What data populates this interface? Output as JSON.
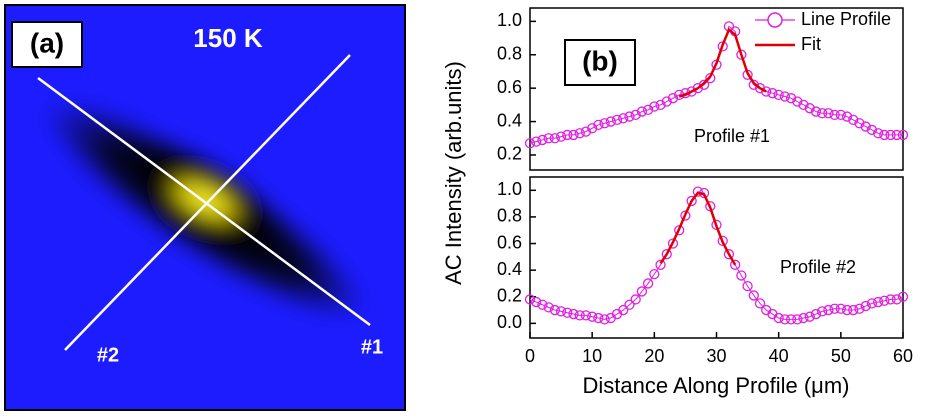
{
  "image_panel": {
    "label": "(a)",
    "title": "150 K",
    "line_labels": [
      "#1",
      "#2"
    ]
  },
  "chart_data": [
    {
      "type": "line",
      "panel_label": "(b)",
      "annotation": "Profile #1",
      "ylabel": "AC Intensity (arb.units)",
      "legend": "upper right",
      "xlim": [
        0,
        60
      ],
      "ylim": [
        0.11,
        1.08
      ],
      "yticks": [
        0.2,
        0.4,
        0.6,
        0.8,
        {
          "value": 1,
          "label": "1.0"
        }
      ],
      "x": [
        0,
        1,
        2,
        3,
        4,
        5,
        6,
        7,
        8,
        9,
        10,
        11,
        12,
        13,
        14,
        15,
        16,
        17,
        18,
        19,
        20,
        21,
        22,
        23,
        24,
        25,
        26,
        27,
        28,
        29,
        30,
        31,
        32,
        33,
        34,
        35,
        36,
        37,
        38,
        39,
        40,
        41,
        42,
        43,
        44,
        45,
        46,
        47,
        48,
        49,
        50,
        51,
        52,
        53,
        54,
        55,
        56,
        57,
        58,
        59,
        60
      ],
      "series": [
        {
          "name": "Line Profile",
          "color": "#e020e0",
          "marker": "circle",
          "values": [
            0.27,
            0.28,
            0.29,
            0.3,
            0.3,
            0.31,
            0.32,
            0.32,
            0.33,
            0.34,
            0.36,
            0.38,
            0.39,
            0.4,
            0.41,
            0.42,
            0.43,
            0.44,
            0.46,
            0.47,
            0.49,
            0.5,
            0.52,
            0.54,
            0.56,
            0.57,
            0.58,
            0.6,
            0.62,
            0.66,
            0.74,
            0.85,
            0.97,
            0.94,
            0.8,
            0.68,
            0.62,
            0.6,
            0.58,
            0.57,
            0.56,
            0.55,
            0.54,
            0.52,
            0.5,
            0.48,
            0.46,
            0.45,
            0.45,
            0.44,
            0.44,
            0.43,
            0.41,
            0.39,
            0.37,
            0.35,
            0.33,
            0.32,
            0.32,
            0.32,
            0.32
          ]
        },
        {
          "name": "Fit",
          "color": "#e00000",
          "values": [
            null,
            null,
            null,
            null,
            null,
            null,
            null,
            null,
            null,
            null,
            null,
            null,
            null,
            null,
            null,
            null,
            null,
            null,
            null,
            null,
            null,
            null,
            null,
            null,
            0.55,
            0.56,
            0.58,
            0.6,
            0.63,
            0.67,
            0.75,
            0.86,
            0.95,
            0.92,
            0.8,
            0.69,
            0.63,
            0.6,
            0.58,
            null,
            null,
            null,
            null,
            null,
            null,
            null,
            null,
            null,
            null,
            null,
            null,
            null,
            null,
            null,
            null,
            null,
            null,
            null,
            null,
            null,
            null
          ]
        }
      ]
    },
    {
      "type": "line",
      "annotation": "Profile #2",
      "xlabel": "Distance Along Profile (μm)",
      "xlim": [
        0,
        60
      ],
      "xticks": [
        0,
        10,
        20,
        30,
        40,
        50,
        60
      ],
      "ylim": [
        -0.11,
        1.1
      ],
      "yticks": [
        {
          "value": 0,
          "label": "0.0"
        },
        0.2,
        0.4,
        0.6,
        0.8,
        {
          "value": 1,
          "label": "1.0"
        }
      ],
      "x": [
        0,
        1,
        2,
        3,
        4,
        5,
        6,
        7,
        8,
        9,
        10,
        11,
        12,
        13,
        14,
        15,
        16,
        17,
        18,
        19,
        20,
        21,
        22,
        23,
        24,
        25,
        26,
        27,
        28,
        29,
        30,
        31,
        32,
        33,
        34,
        35,
        36,
        37,
        38,
        39,
        40,
        41,
        42,
        43,
        44,
        45,
        46,
        47,
        48,
        49,
        50,
        51,
        52,
        53,
        54,
        55,
        56,
        57,
        58,
        59,
        60
      ],
      "series": [
        {
          "color": "#e020e0",
          "marker": "circle",
          "values": [
            0.18,
            0.16,
            0.14,
            0.12,
            0.1,
            0.09,
            0.08,
            0.07,
            0.06,
            0.06,
            0.05,
            0.04,
            0.03,
            0.04,
            0.07,
            0.1,
            0.14,
            0.18,
            0.24,
            0.3,
            0.37,
            0.44,
            0.52,
            0.6,
            0.7,
            0.81,
            0.92,
            0.99,
            0.98,
            0.88,
            0.74,
            0.62,
            0.52,
            0.44,
            0.36,
            0.28,
            0.21,
            0.15,
            0.1,
            0.07,
            0.04,
            0.03,
            0.03,
            0.03,
            0.04,
            0.05,
            0.07,
            0.09,
            0.1,
            0.11,
            0.11,
            0.1,
            0.1,
            0.11,
            0.13,
            0.15,
            0.16,
            0.17,
            0.18,
            0.18,
            0.2
          ]
        },
        {
          "color": "#e00000",
          "values": [
            null,
            null,
            null,
            null,
            null,
            null,
            null,
            null,
            null,
            null,
            null,
            null,
            null,
            null,
            null,
            null,
            null,
            null,
            null,
            null,
            null,
            0.45,
            0.52,
            0.61,
            0.71,
            0.82,
            0.92,
            0.98,
            0.97,
            0.87,
            0.73,
            0.61,
            0.52,
            0.44,
            null,
            null,
            null,
            null,
            null,
            null,
            null,
            null,
            null,
            null,
            null,
            null,
            null,
            null,
            null,
            null,
            null,
            null,
            null,
            null,
            null,
            null,
            null,
            null,
            null,
            null,
            null
          ]
        }
      ]
    }
  ]
}
